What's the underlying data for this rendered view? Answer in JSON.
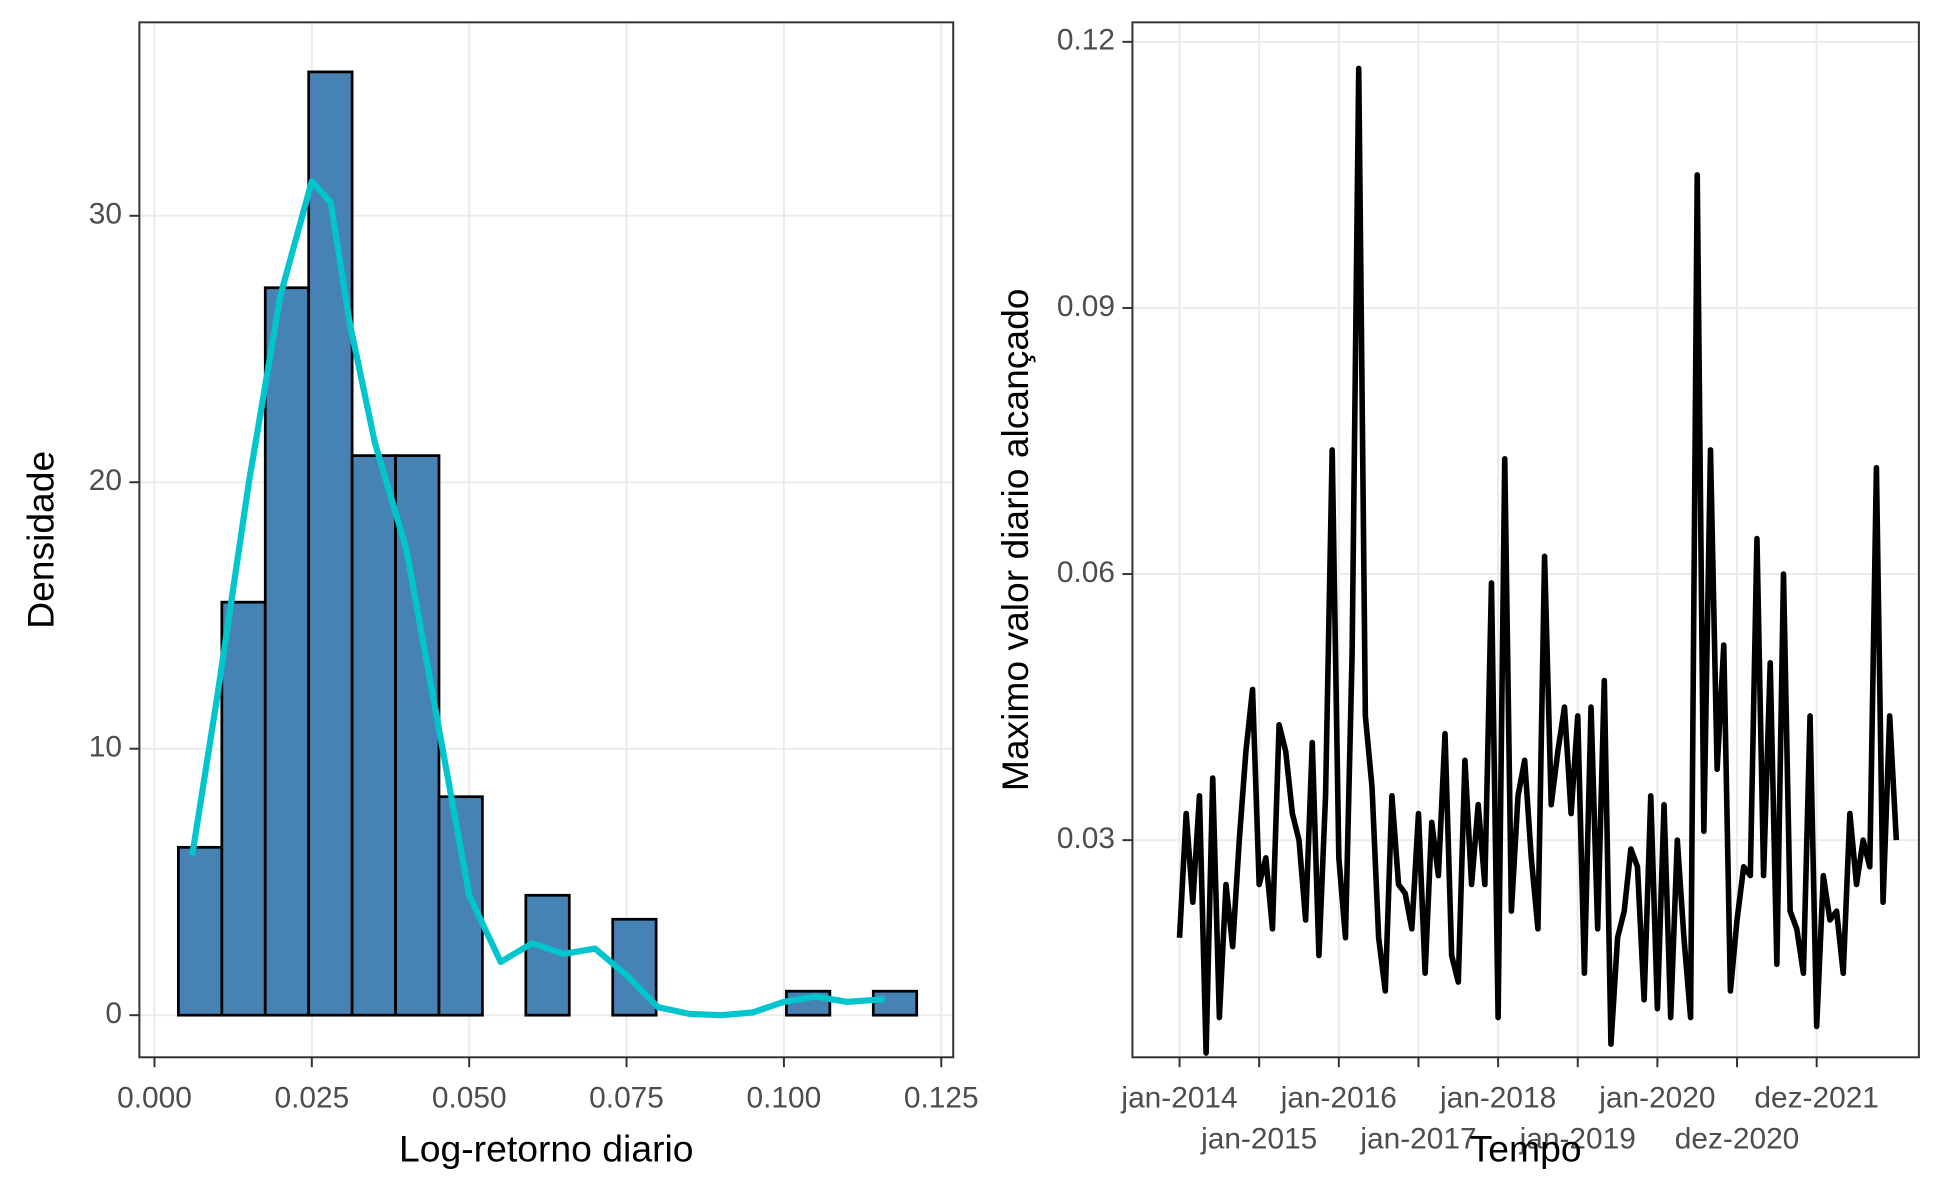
{
  "chart_data": [
    {
      "type": "histogram",
      "x_label": "Log-retorno diario",
      "y_label": "Densidade",
      "bins": [
        0.0038,
        0.0107,
        0.0176,
        0.0245,
        0.0314,
        0.0383,
        0.0452,
        0.0521,
        0.059,
        0.0659,
        0.0728,
        0.0797,
        0.0866,
        0.0935,
        0.1004,
        0.1073,
        0.1142,
        0.1211
      ],
      "counts": [
        6.3,
        15.5,
        27.3,
        35.4,
        21,
        21,
        8.2,
        0,
        4.5,
        0,
        3.6,
        0,
        0,
        0,
        0.9,
        0,
        0.9
      ],
      "color": "#4682b4",
      "edgecolor": "#000000",
      "density_curve": {
        "color": "#00c5cd",
        "x": [
          0.006,
          0.01,
          0.015,
          0.02,
          0.025,
          0.028,
          0.031,
          0.035,
          0.04,
          0.045,
          0.05,
          0.055,
          0.06,
          0.065,
          0.07,
          0.075,
          0.08,
          0.085,
          0.09,
          0.095,
          0.1,
          0.105,
          0.11,
          0.116
        ],
        "values": [
          6,
          12,
          20,
          27,
          31.3,
          30.5,
          26,
          21.5,
          17.5,
          11,
          4.5,
          2,
          2.7,
          2.3,
          2.5,
          1.5,
          0.3,
          0.05,
          0,
          0.1,
          0.5,
          0.7,
          0.5,
          0.6
        ]
      },
      "xlim": [
        -0.0024,
        0.1269
      ],
      "ylim": [
        -1.58,
        37.26
      ],
      "xticks": [
        {
          "value": 0,
          "label": "0.000"
        },
        {
          "value": 0.025,
          "label": "0.025"
        },
        {
          "value": 0.05,
          "label": "0.050"
        },
        {
          "value": 0.075,
          "label": "0.075"
        },
        {
          "value": 0.1,
          "label": "0.100"
        },
        {
          "value": 0.125,
          "label": "0.125"
        }
      ],
      "yticks": [
        0,
        10,
        20,
        30
      ],
      "grid": true
    },
    {
      "type": "line",
      "x_label": "Tempo",
      "y_label": "Maximo valor diario alcançado",
      "x": [
        0,
        1,
        2,
        3,
        4,
        5,
        6,
        7,
        8,
        9,
        10,
        11,
        12,
        13,
        14,
        15,
        16,
        17,
        18,
        19,
        20,
        21,
        22,
        23,
        24,
        25,
        26,
        27,
        28,
        29,
        30,
        31,
        32,
        33,
        34,
        35,
        36,
        37,
        38,
        39,
        40,
        41,
        42,
        43,
        44,
        45,
        46,
        47,
        48,
        49,
        50,
        51,
        52,
        53,
        54,
        55,
        56,
        57,
        58,
        59,
        60,
        61,
        62,
        63,
        64,
        65,
        66,
        67,
        68,
        69,
        70,
        71,
        72,
        73,
        74,
        75,
        76,
        77,
        78,
        79,
        80,
        81,
        82,
        83,
        84,
        85,
        86,
        87,
        88,
        89,
        90,
        91,
        92,
        93,
        94,
        95,
        96,
        97,
        98,
        99,
        100,
        101,
        102,
        103,
        104,
        105,
        106,
        107,
        108
      ],
      "values": [
        0.019,
        0.033,
        0.023,
        0.035,
        0.006,
        0.037,
        0.01,
        0.025,
        0.018,
        0.03,
        0.04,
        0.047,
        0.025,
        0.028,
        0.02,
        0.043,
        0.04,
        0.033,
        0.03,
        0.021,
        0.041,
        0.017,
        0.035,
        0.074,
        0.028,
        0.019,
        0.051,
        0.117,
        0.044,
        0.036,
        0.019,
        0.013,
        0.035,
        0.025,
        0.024,
        0.02,
        0.033,
        0.015,
        0.032,
        0.026,
        0.042,
        0.017,
        0.014,
        0.039,
        0.025,
        0.034,
        0.025,
        0.059,
        0.01,
        0.073,
        0.022,
        0.035,
        0.039,
        0.028,
        0.02,
        0.062,
        0.034,
        0.04,
        0.045,
        0.033,
        0.044,
        0.015,
        0.045,
        0.02,
        0.048,
        0.007,
        0.019,
        0.022,
        0.029,
        0.027,
        0.012,
        0.035,
        0.011,
        0.034,
        0.01,
        0.03,
        0.019,
        0.01,
        0.105,
        0.031,
        0.074,
        0.038,
        0.052,
        0.013,
        0.021,
        0.027,
        0.026,
        0.064,
        0.026,
        0.05,
        0.016,
        0.06,
        0.022,
        0.02,
        0.015,
        0.044,
        0.009,
        0.026,
        0.021,
        0.022,
        0.015,
        0.033,
        0.025,
        0.03,
        0.027,
        0.072,
        0.023,
        0.044,
        0.03
      ],
      "color": "#000000",
      "xlim": [
        -7.1,
        111.4
      ],
      "ylim": [
        0.00552,
        0.1222
      ],
      "xticks": [
        {
          "value": 0,
          "label": "jan-2014"
        },
        {
          "value": 12,
          "label": "jan-2015"
        },
        {
          "value": 24,
          "label": "jan-2016"
        },
        {
          "value": 36,
          "label": "jan-2017"
        },
        {
          "value": 48,
          "label": "jan-2018"
        },
        {
          "value": 60,
          "label": "jan-2019"
        },
        {
          "value": 72,
          "label": "jan-2020"
        },
        {
          "value": 84,
          "label": "dez-2020"
        },
        {
          "value": 96,
          "label": "dez-2021"
        }
      ],
      "yticks": [
        0.03,
        0.06,
        0.09,
        0.12
      ],
      "grid": true
    }
  ]
}
